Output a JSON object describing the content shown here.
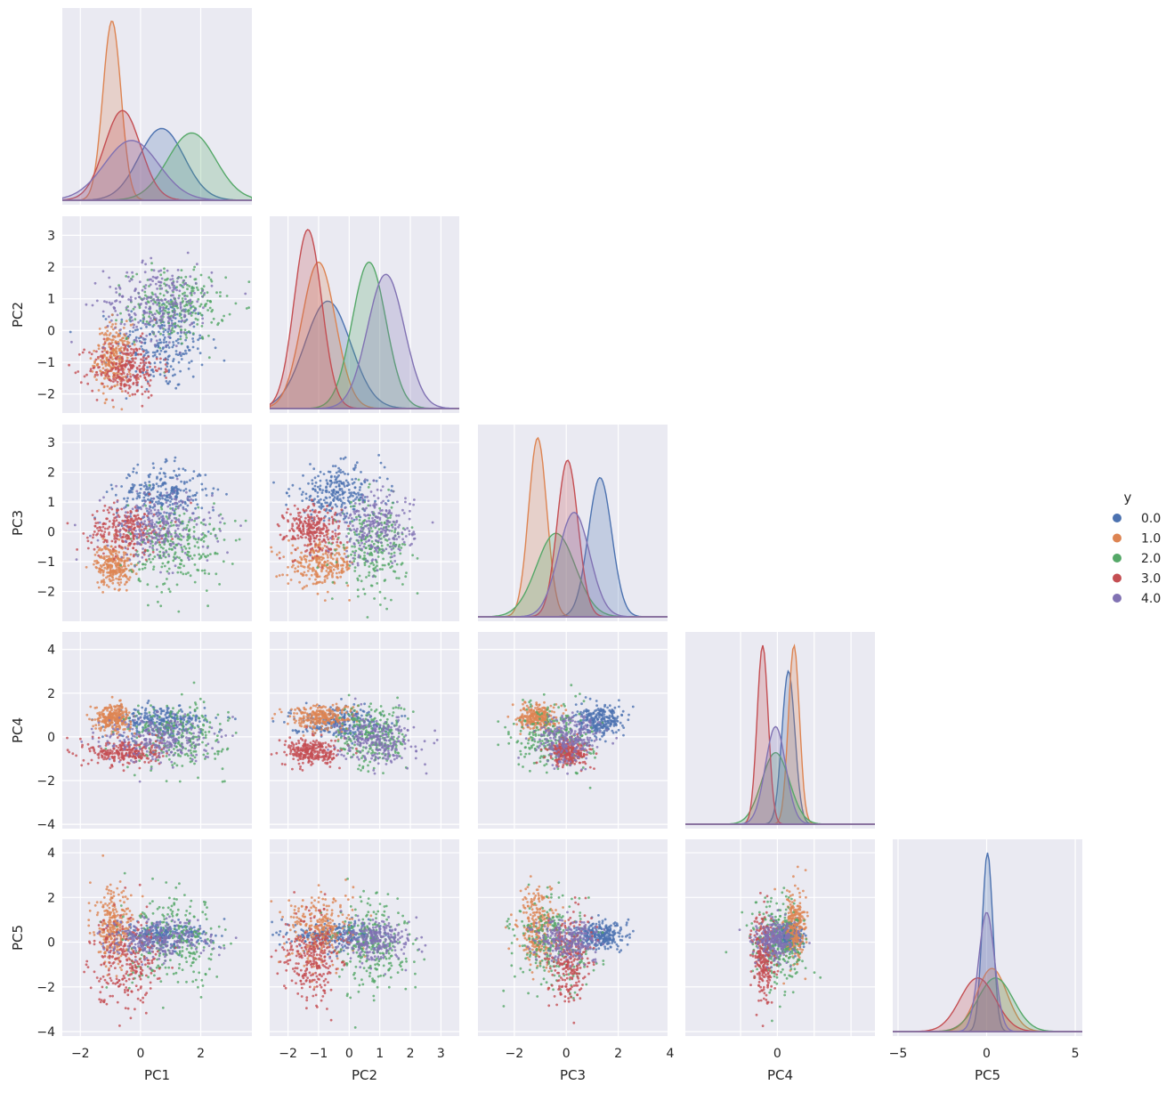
{
  "chart_data": {
    "type": "scatter",
    "subtype": "pairplot",
    "variables": [
      "PC1",
      "PC2",
      "PC3",
      "PC4",
      "PC5"
    ],
    "corner": true,
    "diag_kind": "kde",
    "background": "#eaeaf2",
    "grid": true,
    "legend": {
      "title": "y",
      "placement": "right",
      "entries": [
        "0.0",
        "1.0",
        "2.0",
        "3.0",
        "4.0"
      ]
    },
    "hue_colors": {
      "0.0": "#4c72b0",
      "1.0": "#dd8452",
      "2.0": "#55a868",
      "3.0": "#c44e52",
      "4.0": "#8172b3"
    },
    "axes": {
      "PC1": {
        "lim": [
          -2.6,
          3.7
        ],
        "ticks": [
          -2,
          0,
          2
        ],
        "tick_labels": [
          "−2",
          "0",
          "2"
        ]
      },
      "PC2": {
        "lim": [
          -2.6,
          3.6
        ],
        "ticks": [
          -2,
          -1,
          0,
          1,
          2,
          3
        ],
        "tick_labels": [
          "−2",
          "−1",
          "0",
          "1",
          "2",
          "3"
        ]
      },
      "PC3": {
        "lim": [
          -3.0,
          3.6
        ],
        "ticks": [
          -2,
          -1,
          0,
          1,
          2,
          3
        ],
        "tick_labels": [
          "−2",
          "−1",
          "0",
          "1",
          "2",
          "3"
        ],
        "x_ticks": [
          -2,
          0,
          2,
          4
        ],
        "x_tick_labels": [
          "−2",
          "0",
          "2",
          "4"
        ],
        "x_lim": [
          -3.4,
          3.9
        ]
      },
      "PC4": {
        "lim": [
          -4.2,
          4.8
        ],
        "ticks": [
          -4,
          -2,
          0,
          2,
          4
        ],
        "tick_labels": [
          "−4",
          "−2",
          "0",
          "2",
          "4"
        ],
        "x_ticks": [
          -2,
          0,
          2,
          4
        ],
        "x_tick_labels": [
          "",
          "0",
          "",
          ""
        ],
        "x_lim": [
          -5.0,
          5.3
        ]
      },
      "PC5": {
        "lim": [
          -4.2,
          4.6
        ],
        "ticks": [
          -4,
          -2,
          0,
          2,
          4
        ],
        "tick_labels": [
          "−4",
          "−2",
          "0",
          "2",
          "4"
        ],
        "x_ticks": [
          -5,
          0,
          5
        ],
        "x_tick_labels": [
          "−5",
          "0",
          "5"
        ],
        "x_lim": [
          -5.3,
          5.4
        ]
      }
    },
    "class_stats": {
      "0.0": {
        "mean": [
          0.7,
          -0.4,
          1.3,
          0.7,
          0.3
        ],
        "sd": [
          0.75,
          0.75,
          0.45,
          0.35,
          0.3
        ]
      },
      "1.0": {
        "mean": [
          -0.9,
          -0.9,
          -1.1,
          0.9,
          0.6
        ],
        "sd": [
          0.3,
          0.55,
          0.35,
          0.3,
          0.85
        ]
      },
      "2.0": {
        "mean": [
          1.2,
          0.8,
          -0.5,
          0.0,
          -0.1
        ],
        "sd": [
          0.8,
          0.55,
          0.75,
          0.75,
          1.0
        ]
      },
      "3.0": {
        "mean": [
          -0.5,
          -1.2,
          0.1,
          -0.7,
          -0.7
        ],
        "sd": [
          0.6,
          0.45,
          0.4,
          0.3,
          1.0
        ]
      },
      "4.0": {
        "mean": [
          0.6,
          0.9,
          0.1,
          -0.1,
          0.1
        ],
        "sd": [
          0.9,
          0.6,
          0.6,
          0.55,
          0.45
        ]
      }
    },
    "diag_peaks": {
      "PC1": {
        "0.0": 0.7,
        "1.0": -0.95,
        "2.0": 1.7,
        "3.0": -0.6,
        "4.0": -0.3
      },
      "PC2": {
        "0.0": -0.7,
        "1.0": -1.0,
        "2.0": 0.65,
        "3.0": -1.35,
        "4.0": 1.2
      },
      "PC3": {
        "0.0": 1.3,
        "1.0": -1.1,
        "2.0": -0.4,
        "3.0": 0.05,
        "4.0": 0.3
      },
      "PC4": {
        "0.0": 0.6,
        "1.0": 0.9,
        "2.0": -0.1,
        "3.0": -0.8,
        "4.0": -0.1
      },
      "PC5": {
        "0.0": 0.05,
        "1.0": 0.3,
        "2.0": 0.5,
        "3.0": -0.5,
        "4.0": 0.0
      }
    }
  }
}
